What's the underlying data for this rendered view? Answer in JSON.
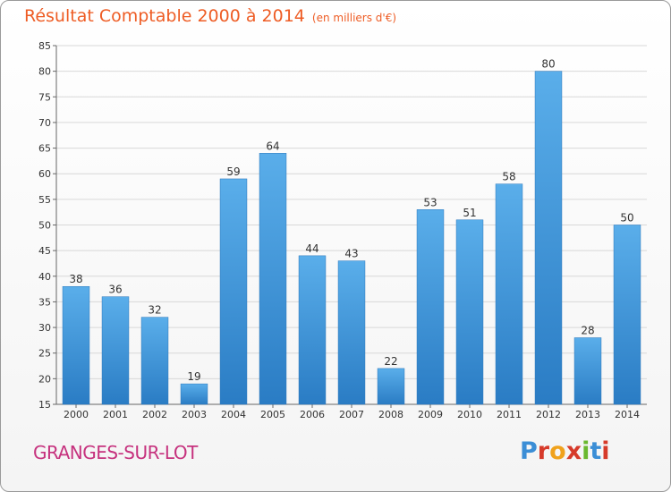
{
  "header": {
    "title": "Résultat Comptable 2000 à 2014",
    "subtitle": "(en milliers d'€)"
  },
  "footer": {
    "place": "GRANGES-SUR-LOT",
    "logo_letters": [
      "P",
      "r",
      "o",
      "x",
      "i",
      "t",
      "i"
    ],
    "logo_colors": [
      "#3b8ed6",
      "#d63a2a",
      "#f0a21c",
      "#d63a2a",
      "#6ab82e",
      "#3b8ed6",
      "#d63a2a"
    ]
  },
  "chart_data": {
    "type": "bar",
    "categories": [
      "2000",
      "2001",
      "2002",
      "2003",
      "2004",
      "2005",
      "2006",
      "2007",
      "2008",
      "2009",
      "2010",
      "2011",
      "2012",
      "2013",
      "2014"
    ],
    "values": [
      38,
      36,
      32,
      19,
      59,
      64,
      44,
      43,
      22,
      53,
      51,
      58,
      80,
      28,
      50
    ],
    "title": "Résultat Comptable 2000 à 2014",
    "ylim": [
      15,
      85
    ],
    "yticks": [
      15,
      20,
      25,
      30,
      35,
      40,
      45,
      50,
      55,
      60,
      65,
      70,
      75,
      80,
      85
    ],
    "grid": true,
    "bar_color": "#3d96dc"
  }
}
